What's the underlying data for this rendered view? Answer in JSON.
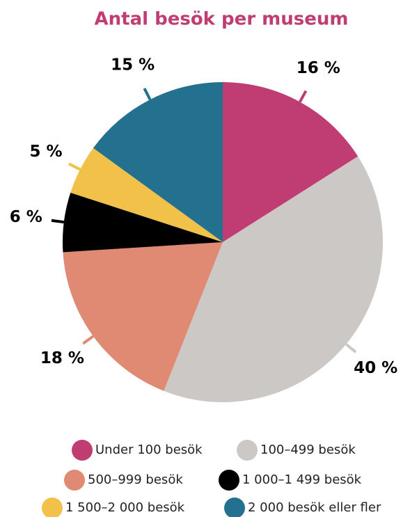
{
  "chart_data": {
    "type": "pie",
    "title": "Antal besök per museum",
    "categories": [
      "Under 100 besök",
      "100–499 besök",
      "500–999 besök",
      "1 000–1 499 besök",
      "1 500–2 000 besök",
      "2 000 besök eller fler"
    ],
    "values": [
      16,
      40,
      18,
      6,
      5,
      15
    ],
    "value_labels": [
      "16 %",
      "40 %",
      "18 %",
      "6 %",
      "5 %",
      "15 %"
    ],
    "colors": [
      "#bf3d73",
      "#cbc8c5",
      "#e08a74",
      "#000000",
      "#f2c14a",
      "#23718f"
    ],
    "legend": "bottom"
  }
}
